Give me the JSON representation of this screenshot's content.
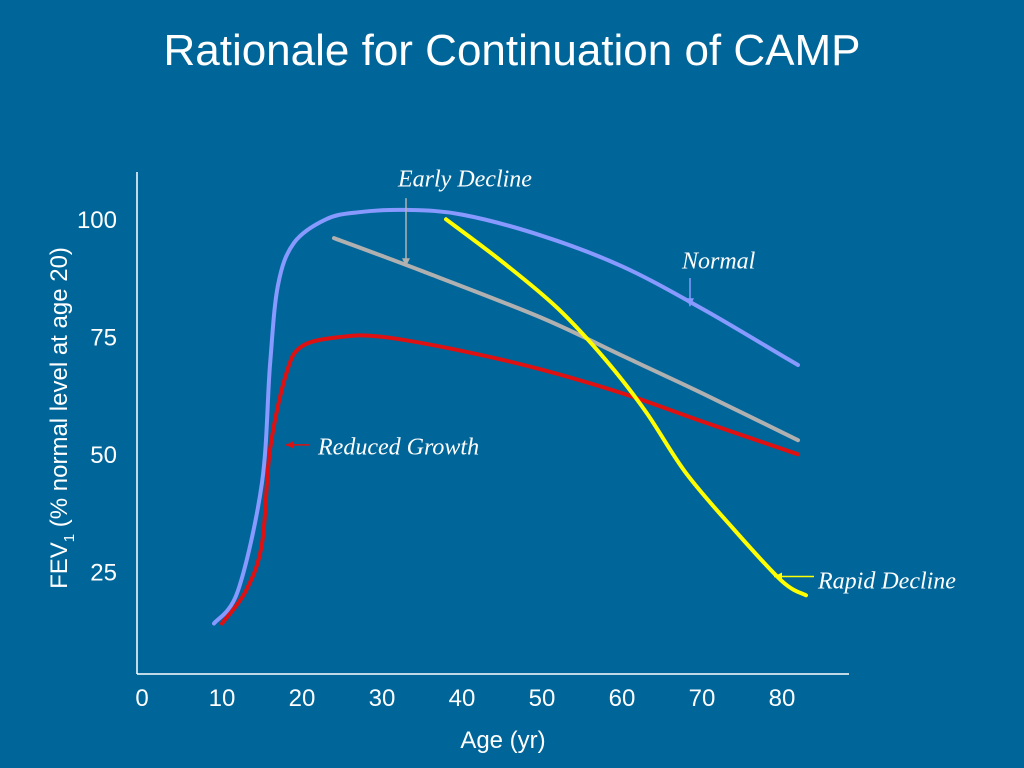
{
  "slide": {
    "title": "Rationale for Continuation of CAMP"
  },
  "colors": {
    "background": "#006699",
    "Normal": "#8899ff",
    "Early Decline": "#b0b0b0",
    "Reduced Growth": "#dd1111",
    "Rapid Decline": "#ffff00"
  },
  "chart_data": {
    "type": "line",
    "title": "Rationale for Continuation of CAMP",
    "xlabel": "Age (yr)",
    "ylabel_main": "FEV",
    "ylabel_sub": "1",
    "ylabel_rest": " (% normal level at age 20)",
    "x_ticks": [
      "0",
      "10",
      "20",
      "30",
      "40",
      "50",
      "60",
      "70",
      "80"
    ],
    "y_ticks": [
      "25",
      "50",
      "75",
      "100"
    ],
    "xlim": [
      0,
      89
    ],
    "ylim": [
      0,
      110
    ],
    "grid": false,
    "series": [
      {
        "name": "Normal",
        "color": "#8899ff",
        "points": [
          [
            9,
            15
          ],
          [
            12,
            22
          ],
          [
            15,
            45
          ],
          [
            16,
            70
          ],
          [
            17,
            87
          ],
          [
            19,
            96
          ],
          [
            23,
            101
          ],
          [
            27,
            102.5
          ],
          [
            33,
            103
          ],
          [
            40,
            102
          ],
          [
            50,
            97.5
          ],
          [
            60,
            91
          ],
          [
            70,
            82
          ],
          [
            80,
            72
          ],
          [
            82,
            70
          ]
        ]
      },
      {
        "name": "Early Decline",
        "color": "#b0b0b0",
        "points": [
          [
            24,
            97
          ],
          [
            35,
            90
          ],
          [
            50,
            80
          ],
          [
            60,
            72
          ],
          [
            70,
            64
          ],
          [
            82,
            54
          ]
        ]
      },
      {
        "name": "Reduced Growth",
        "color": "#dd1111",
        "points": [
          [
            10,
            15
          ],
          [
            13,
            22
          ],
          [
            15,
            32
          ],
          [
            16,
            52
          ],
          [
            18,
            68
          ],
          [
            20,
            74
          ],
          [
            25,
            76
          ],
          [
            30,
            76
          ],
          [
            40,
            73
          ],
          [
            50,
            69
          ],
          [
            60,
            64
          ],
          [
            70,
            58
          ],
          [
            82,
            51
          ]
        ]
      },
      {
        "name": "Rapid Decline",
        "color": "#ffff00",
        "points": [
          [
            38,
            101
          ],
          [
            45,
            92
          ],
          [
            52,
            82
          ],
          [
            58,
            71
          ],
          [
            63,
            60
          ],
          [
            68,
            47
          ],
          [
            74,
            35
          ],
          [
            80,
            24
          ],
          [
            83,
            21
          ]
        ]
      }
    ],
    "annotations": [
      {
        "text": "Early Decline",
        "series": "Early Decline",
        "arrow_to": [
          33,
          91
        ],
        "arrow_from": [
          33,
          105.5
        ],
        "pos": [
          32,
          108
        ]
      },
      {
        "text": "Normal",
        "series": "Normal",
        "arrow_to": [
          68.5,
          82.5
        ],
        "arrow_from": [
          68.5,
          88.5
        ],
        "pos": [
          67.5,
          90.5
        ]
      },
      {
        "text": "Reduced Growth",
        "series": "Reduced Growth",
        "arrow_to": [
          18,
          53
        ],
        "arrow_from": [
          21,
          53
        ],
        "pos": [
          22,
          51
        ]
      },
      {
        "text": "Rapid Decline",
        "series": "Rapid Decline",
        "arrow_to": [
          79,
          25
        ],
        "arrow_from": [
          84,
          25
        ],
        "pos": [
          84.5,
          22.5
        ]
      }
    ]
  }
}
